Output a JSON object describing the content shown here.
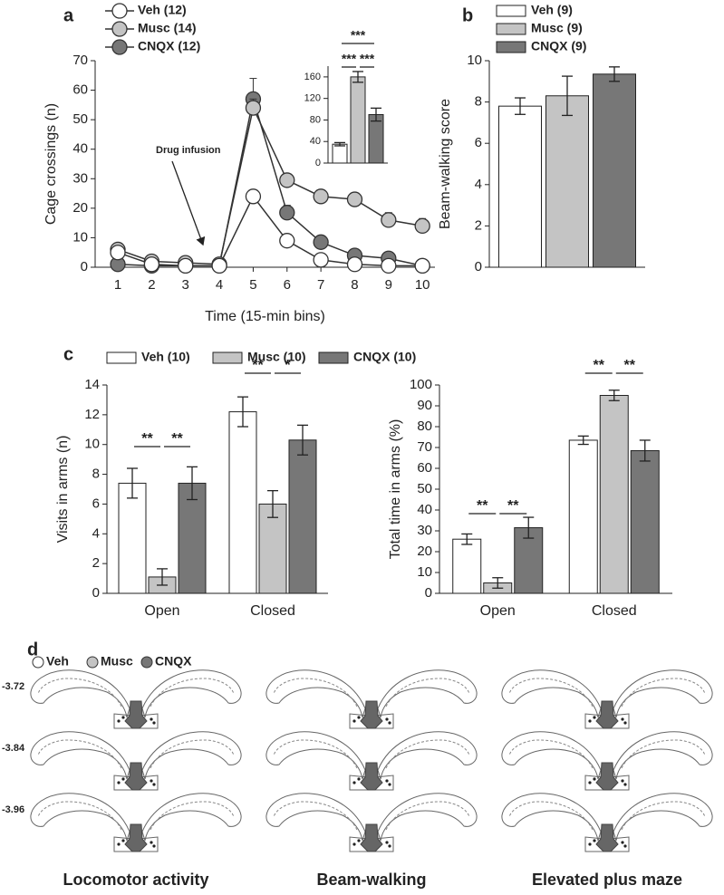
{
  "chart_data": [
    {
      "type": "line",
      "panel": "a",
      "ylabel": "Cage crossings (n)",
      "xlabel": "Time (15-min bins)",
      "annotation": "Drug infusion",
      "x": [
        1,
        2,
        3,
        4,
        5,
        6,
        7,
        8,
        9,
        10
      ],
      "series": [
        {
          "name": "Veh (12)",
          "color": "#ffffff",
          "values": [
            5,
            1,
            0.5,
            0.5,
            24,
            9,
            2.5,
            1,
            0.5,
            0.5
          ],
          "errors": [
            1,
            0.5,
            0.3,
            0.3,
            2,
            1,
            0.5,
            0.3,
            0.3,
            0.3
          ]
        },
        {
          "name": "Musc (14)",
          "color": "#c4c4c4",
          "values": [
            6,
            2,
            1.5,
            1,
            54,
            29.5,
            24,
            23,
            16,
            14
          ],
          "errors": [
            1,
            0.5,
            0.5,
            0.3,
            3,
            1.5,
            1.5,
            1.5,
            2.5,
            2.5
          ]
        },
        {
          "name": "CNQX (12)",
          "color": "#777777",
          "values": [
            1,
            0.5,
            0.5,
            0.5,
            57,
            18.5,
            8.5,
            4,
            3,
            0.5
          ],
          "errors": [
            0.5,
            0.3,
            0.3,
            0.3,
            7,
            2.5,
            1.5,
            1,
            1,
            0.5
          ]
        }
      ],
      "xlim": [
        0.33,
        10.37
      ],
      "xticks": [
        1,
        2,
        3,
        4,
        5,
        6,
        7,
        8,
        9,
        10
      ],
      "ylim": [
        0,
        70
      ],
      "yticks": [
        0,
        10,
        20,
        30,
        40,
        50,
        60,
        70
      ]
    },
    {
      "type": "bar",
      "values": [
        35,
        160,
        90
      ],
      "errors": [
        3,
        10,
        12
      ],
      "colors": [
        "#ffffff",
        "#c4c4c4",
        "#777777"
      ],
      "annotations": [
        "***",
        "***",
        "***"
      ],
      "ylim": [
        0,
        180
      ],
      "yticks": [
        0,
        40,
        80,
        120,
        160
      ]
    },
    {
      "type": "bar",
      "panel": "b",
      "ylabel": "Beam-walking score",
      "series": [
        {
          "name": "Veh (9)",
          "color": "#ffffff",
          "values": [
            7.8
          ],
          "errors": [
            0.4
          ]
        },
        {
          "name": "Musc (9)",
          "color": "#c4c4c4",
          "values": [
            8.3
          ],
          "errors": [
            0.95
          ]
        },
        {
          "name": "CNQX (9)",
          "color": "#777777",
          "values": [
            9.35
          ],
          "errors": [
            0.35
          ]
        }
      ],
      "ylim": [
        0,
        10
      ],
      "yticks": [
        0,
        2,
        4,
        6,
        8,
        10
      ]
    },
    {
      "type": "bar",
      "panel": "c",
      "ylabel": "Visits in arms (n)",
      "categories": [
        "Open",
        "Closed"
      ],
      "series": [
        {
          "name": "Veh (10)",
          "color": "#ffffff",
          "values": [
            7.4,
            12.2
          ],
          "errors": [
            1.0,
            1.0
          ]
        },
        {
          "name": "Musc (10)",
          "color": "#c4c4c4",
          "values": [
            1.1,
            6.0
          ],
          "errors": [
            0.55,
            0.9
          ]
        },
        {
          "name": "CNQX (10)",
          "color": "#777777",
          "values": [
            7.4,
            10.3
          ],
          "errors": [
            1.1,
            1.0
          ]
        }
      ],
      "annotations": [
        "**",
        "**",
        "**",
        "*"
      ],
      "ylim": [
        0,
        14
      ],
      "yticks": [
        0,
        2,
        4,
        6,
        8,
        10,
        12,
        14
      ]
    },
    {
      "type": "bar",
      "ylabel": "Total time in arms (%)",
      "categories": [
        "Open",
        "Closed"
      ],
      "series": [
        {
          "color": "#ffffff",
          "values": [
            26,
            73.5
          ],
          "errors": [
            2.5,
            2
          ]
        },
        {
          "color": "#c4c4c4",
          "values": [
            5,
            95
          ],
          "errors": [
            2.5,
            2.5
          ]
        },
        {
          "color": "#777777",
          "values": [
            31.5,
            68.5
          ],
          "errors": [
            5,
            5
          ]
        }
      ],
      "annotations": [
        "**",
        "**",
        "**",
        "**"
      ],
      "ylim": [
        0,
        100
      ],
      "yticks": [
        0,
        10,
        20,
        30,
        40,
        50,
        60,
        70,
        80,
        90,
        100
      ]
    }
  ],
  "atlas": {
    "panel": "d",
    "legend": [
      {
        "name": "Veh",
        "color": "#ffffff"
      },
      {
        "name": "Musc",
        "color": "#c4c4c4"
      },
      {
        "name": "CNQX",
        "color": "#777777"
      }
    ],
    "levels": [
      "-3.72",
      "-3.84",
      "-3.96"
    ],
    "captions": [
      "Locomotor activity",
      "Beam-walking",
      "Elevated plus maze"
    ]
  }
}
